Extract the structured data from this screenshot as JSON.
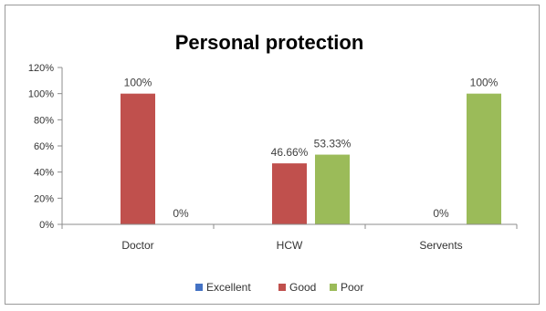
{
  "chart_data": {
    "type": "bar",
    "title": "Personal protection",
    "xlabel": "",
    "ylabel": "",
    "ylim": [
      0,
      120
    ],
    "y_ticks": [
      "0%",
      "20%",
      "40%",
      "60%",
      "80%",
      "100%",
      "120%"
    ],
    "y_tick_values": [
      0,
      20,
      40,
      60,
      80,
      100,
      120
    ],
    "categories": [
      "Doctor",
      "HCW",
      "Servents"
    ],
    "legend_position": "bottom",
    "grid": false,
    "series": [
      {
        "name": "Excellent",
        "color": "#4472c4",
        "values": [
          0,
          0,
          0
        ],
        "labels": [
          "",
          "",
          ""
        ]
      },
      {
        "name": "Good",
        "color": "#c0504d",
        "values": [
          100,
          46.66,
          0
        ],
        "labels": [
          "100%",
          "46.66%",
          "0%"
        ]
      },
      {
        "name": "Poor",
        "color": "#9bbb59",
        "values": [
          0,
          53.33,
          100
        ],
        "labels": [
          "0%",
          "53.33%",
          "100%"
        ]
      }
    ]
  }
}
